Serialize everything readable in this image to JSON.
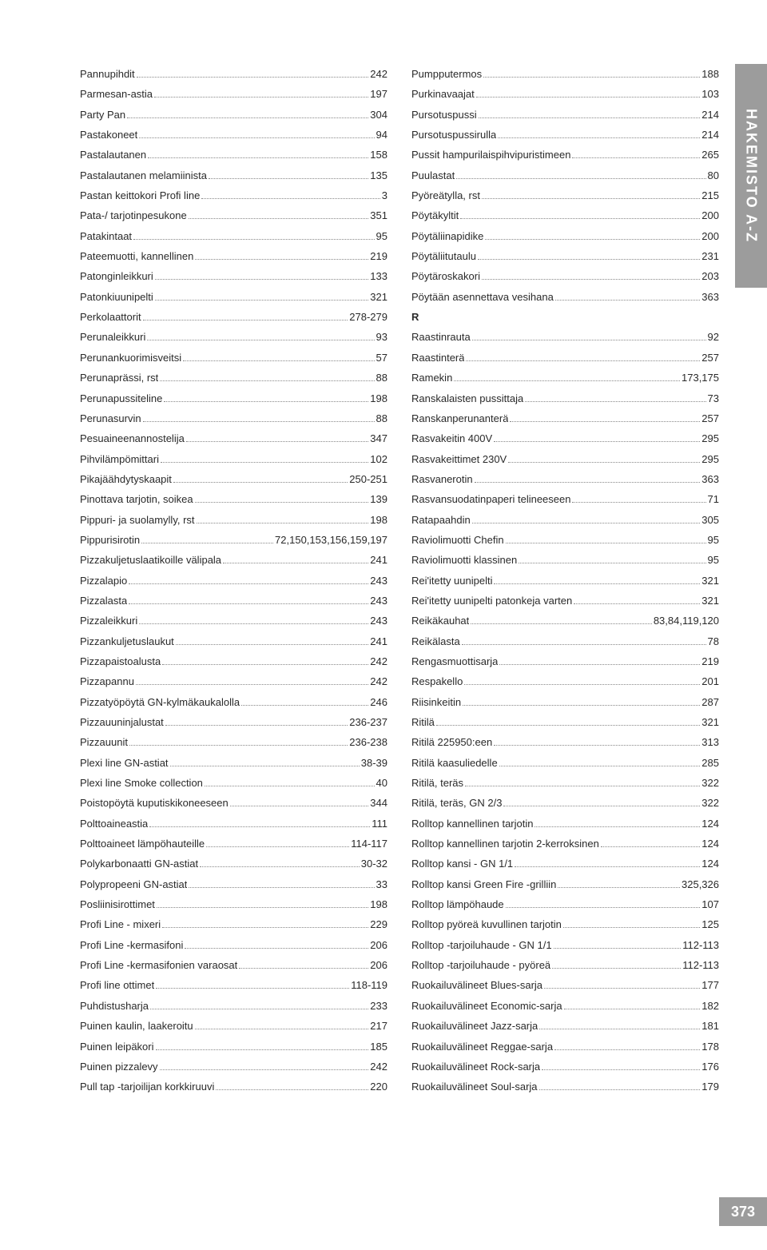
{
  "side_tab": "HAKEMISTO A-Z",
  "page_number": "373",
  "section_letter_R": "R",
  "left": [
    {
      "label": "Pannupihdit",
      "page": "242"
    },
    {
      "label": "Parmesan-astia",
      "page": "197"
    },
    {
      "label": "Party Pan",
      "page": "304"
    },
    {
      "label": "Pastakoneet",
      "page": "94"
    },
    {
      "label": "Pastalautanen",
      "page": "158"
    },
    {
      "label": "Pastalautanen melamiinista",
      "page": "135"
    },
    {
      "label": "Pastan keittokori Profi line",
      "page": "3"
    },
    {
      "label": "Pata-/ tarjotinpesukone",
      "page": "351"
    },
    {
      "label": "Patakintaat",
      "page": "95"
    },
    {
      "label": "Pateemuotti, kannellinen",
      "page": "219"
    },
    {
      "label": "Patonginleikkuri",
      "page": "133"
    },
    {
      "label": "Patonkiuunipelti",
      "page": "321"
    },
    {
      "label": "Perkolaattorit",
      "page": "278-279"
    },
    {
      "label": "Perunaleikkuri",
      "page": "93"
    },
    {
      "label": "Perunankuorimisveitsi",
      "page": "57"
    },
    {
      "label": "Perunaprässi, rst",
      "page": "88"
    },
    {
      "label": "Perunapussiteline",
      "page": "198"
    },
    {
      "label": "Perunasurvin",
      "page": "88"
    },
    {
      "label": "Pesuaineenannostelija",
      "page": "347"
    },
    {
      "label": "Pihvilämpömittari",
      "page": "102"
    },
    {
      "label": "Pikajäähdytyskaapit",
      "page": "250-251"
    },
    {
      "label": "Pinottava tarjotin, soikea",
      "page": "139"
    },
    {
      "label": "Pippuri- ja suolamylly, rst",
      "page": "198"
    },
    {
      "label": "Pippurisirotin",
      "page": "72,150,153,156,159,197"
    },
    {
      "label": "Pizzakuljetuslaatikoille välipala",
      "page": "241"
    },
    {
      "label": "Pizzalapio",
      "page": "243"
    },
    {
      "label": "Pizzalasta",
      "page": "243"
    },
    {
      "label": "Pizzaleikkuri",
      "page": "243"
    },
    {
      "label": "Pizzankuljetuslaukut",
      "page": "241"
    },
    {
      "label": "Pizzapaistoalusta",
      "page": "242"
    },
    {
      "label": "Pizzapannu",
      "page": "242"
    },
    {
      "label": "Pizzatyöpöytä GN-kylmäkaukalolla",
      "page": "246"
    },
    {
      "label": "Pizzauuninjalustat",
      "page": "236-237"
    },
    {
      "label": "Pizzauunit",
      "page": "236-238"
    },
    {
      "label": "Plexi line GN-astiat",
      "page": "38-39"
    },
    {
      "label": "Plexi line Smoke collection",
      "page": "40"
    },
    {
      "label": "Poistopöytä kuputiskikoneeseen",
      "page": "344"
    },
    {
      "label": "Polttoaineastia",
      "page": "111"
    },
    {
      "label": "Polttoaineet lämpöhauteille",
      "page": "114-117"
    },
    {
      "label": "Polykarbonaatti GN-astiat",
      "page": "30-32"
    },
    {
      "label": "Polypropeeni GN-astiat",
      "page": "33"
    },
    {
      "label": "Posliinisirottimet",
      "page": "198"
    },
    {
      "label": "Profi Line - mixeri",
      "page": "229"
    },
    {
      "label": "Profi Line -kermasifoni",
      "page": "206"
    },
    {
      "label": "Profi Line -kermasifonien varaosat",
      "page": "206"
    },
    {
      "label": "Profi line ottimet",
      "page": "118-119"
    },
    {
      "label": "Puhdistusharja",
      "page": "233"
    },
    {
      "label": "Puinen kaulin, laakeroitu",
      "page": "217"
    },
    {
      "label": "Puinen leipäkori",
      "page": "185"
    },
    {
      "label": "Puinen pizzalevy",
      "page": "242"
    },
    {
      "label": "Pull tap -tarjoilijan korkkiruuvi",
      "page": "220"
    }
  ],
  "right": [
    {
      "label": "Pumpputermos",
      "page": "188"
    },
    {
      "label": "Purkinavaajat",
      "page": "103"
    },
    {
      "label": "Pursotuspussi",
      "page": "214"
    },
    {
      "label": "Pursotuspussirulla",
      "page": "214"
    },
    {
      "label": "Pussit hampurilaispihvipuristimeen",
      "page": "265"
    },
    {
      "label": "Puulastat",
      "page": "80"
    },
    {
      "label": "Pyöreätylla, rst",
      "page": "215"
    },
    {
      "label": "Pöytäkyltit",
      "page": "200"
    },
    {
      "label": "Pöytäliinapidike",
      "page": "200"
    },
    {
      "label": "Pöytäliitutaulu",
      "page": "231"
    },
    {
      "label": "Pöytäroskakori",
      "page": "203"
    },
    {
      "label": "Pöytään asennettava vesihana",
      "page": "363"
    },
    {
      "section": "R"
    },
    {
      "label": "Raastinrauta",
      "page": "92"
    },
    {
      "label": "Raastinterä",
      "page": "257"
    },
    {
      "label": "Ramekin",
      "page": "173,175"
    },
    {
      "label": "Ranskalaisten pussittaja",
      "page": "73"
    },
    {
      "label": "Ranskanperunanterä",
      "page": "257"
    },
    {
      "label": "Rasvakeitin 400V",
      "page": "295"
    },
    {
      "label": "Rasvakeittimet 230V",
      "page": "295"
    },
    {
      "label": "Rasvanerotin",
      "page": "363"
    },
    {
      "label": "Rasvansuodatinpaperi telineeseen",
      "page": "71"
    },
    {
      "label": "Ratapaahdin",
      "page": "305"
    },
    {
      "label": "Raviolimuotti Chefin",
      "page": "95"
    },
    {
      "label": "Raviolimuotti klassinen",
      "page": "95"
    },
    {
      "label": "Rei'itetty uunipelti",
      "page": "321"
    },
    {
      "label": "Rei'itetty uunipelti patonkeja varten",
      "page": "321"
    },
    {
      "label": "Reikäkauhat",
      "page": "83,84,119,120"
    },
    {
      "label": "Reikälasta",
      "page": "78"
    },
    {
      "label": "Rengasmuottisarja",
      "page": "219"
    },
    {
      "label": "Respakello",
      "page": "201"
    },
    {
      "label": "Riisinkeitin",
      "page": "287"
    },
    {
      "label": "Ritilä",
      "page": "321"
    },
    {
      "label": "Ritilä 225950:een",
      "page": "313"
    },
    {
      "label": "Ritilä kaasuliedelle",
      "page": "285"
    },
    {
      "label": "Ritilä, teräs",
      "page": "322"
    },
    {
      "label": "Ritilä, teräs, GN 2/3",
      "page": "322"
    },
    {
      "label": "Rolltop kannellinen tarjotin",
      "page": "124"
    },
    {
      "label": "Rolltop kannellinen tarjotin 2-kerroksinen",
      "page": "124"
    },
    {
      "label": "Rolltop kansi - GN 1/1",
      "page": "124"
    },
    {
      "label": "Rolltop kansi Green Fire -grilliin",
      "page": "325,326"
    },
    {
      "label": "Rolltop lämpöhaude",
      "page": "107"
    },
    {
      "label": "Rolltop pyöreä kuvullinen tarjotin",
      "page": "125"
    },
    {
      "label": "Rolltop -tarjoiluhaude - GN 1/1",
      "page": "112-113"
    },
    {
      "label": "Rolltop -tarjoiluhaude - pyöreä",
      "page": "112-113"
    },
    {
      "label": "Ruokailuvälineet Blues-sarja",
      "page": "177"
    },
    {
      "label": "Ruokailuvälineet Economic-sarja",
      "page": "182"
    },
    {
      "label": "Ruokailuvälineet Jazz-sarja",
      "page": "181"
    },
    {
      "label": "Ruokailuvälineet Reggae-sarja",
      "page": "178"
    },
    {
      "label": "Ruokailuvälineet Rock-sarja",
      "page": "176"
    },
    {
      "label": "Ruokailuvälineet Soul-sarja",
      "page": "179"
    }
  ]
}
